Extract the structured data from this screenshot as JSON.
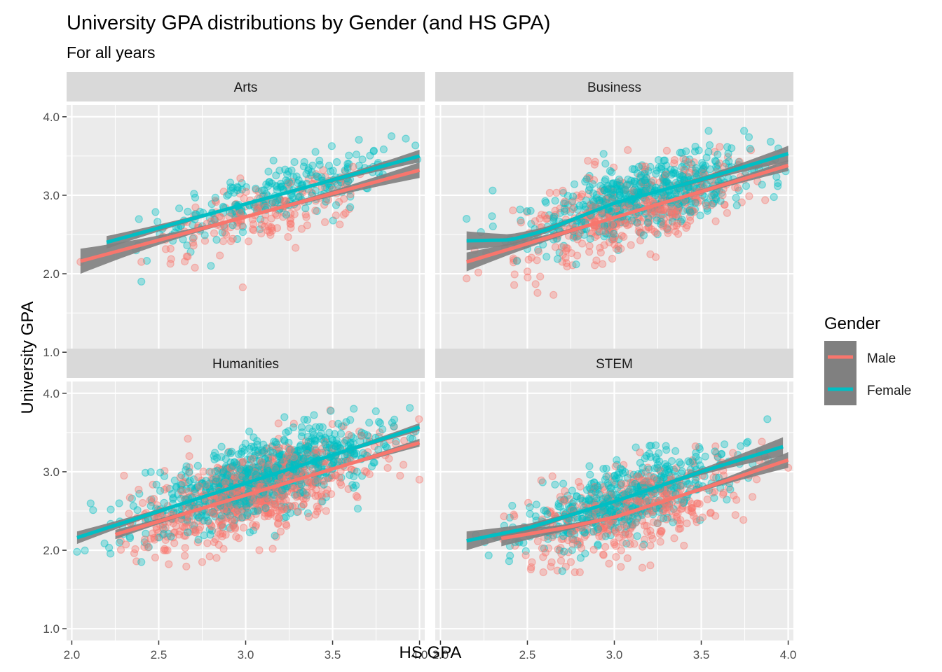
{
  "chart_data": {
    "type": "scatter",
    "title": "University GPA distributions by Gender (and HS GPA)",
    "subtitle": "For all years",
    "xlabel": "HS GPA",
    "ylabel": "University GPA",
    "xlim": [
      1.97,
      4.03
    ],
    "ylim": [
      0.85,
      4.15
    ],
    "x_ticks": [
      2.0,
      2.5,
      3.0,
      3.5,
      4.0
    ],
    "x_tick_labels": [
      "2.0",
      "2.5",
      "3.0",
      "3.5",
      "4.0"
    ],
    "y_ticks": [
      1.0,
      2.0,
      3.0,
      4.0
    ],
    "y_tick_labels": [
      "1.0",
      "2.0",
      "3.0",
      "4.0"
    ],
    "grid": true,
    "legend": {
      "title": "Gender",
      "placement": "right",
      "entries": [
        {
          "name": "Male",
          "color": "#F8766D"
        },
        {
          "name": "Female",
          "color": "#00BFC4"
        }
      ]
    },
    "colors": {
      "male": "#F8766D",
      "female": "#00BFC4",
      "panel_bg": "#EBEBEB",
      "strip_bg": "#D9D9D9",
      "ribbon": "#808080"
    },
    "facets": [
      {
        "name": "Arts",
        "series": [
          {
            "name": "Male",
            "fit": {
              "x": [
                2.05,
                4.0
              ],
              "y": [
                2.16,
                3.32
              ]
            },
            "band_halfwidth": [
              0.16,
              0.02,
              0.1
            ],
            "cloud": {
              "x_range": [
                2.05,
                4.0
              ],
              "x_center": 3.1,
              "x_sd": 0.33,
              "resid_sd": 0.22,
              "count": 180,
              "x_min_extra": [
                [
                  2.05,
                  2.15
                ],
                [
                  2.4,
                  2.15
                ]
              ]
            }
          },
          {
            "name": "Female",
            "fit": {
              "x": [
                2.2,
                4.0
              ],
              "y": [
                2.4,
                3.5
              ]
            },
            "band_halfwidth": [
              0.08,
              0.015,
              0.08
            ],
            "cloud": {
              "x_range": [
                2.3,
                4.0
              ],
              "x_center": 3.2,
              "x_sd": 0.33,
              "resid_sd": 0.18,
              "count": 260,
              "x_min_extra": [
                [
                  2.4,
                  1.9
                ],
                [
                  2.8,
                  2.1
                ]
              ]
            }
          }
        ]
      },
      {
        "name": "Business",
        "series": [
          {
            "name": "Male",
            "fit": {
              "x": [
                2.15,
                4.0
              ],
              "y": [
                2.15,
                3.38
              ]
            },
            "band_halfwidth": [
              0.12,
              0.015,
              0.07
            ],
            "cloud": {
              "x_range": [
                2.15,
                4.0
              ],
              "x_center": 3.1,
              "x_sd": 0.33,
              "resid_sd": 0.26,
              "count": 420,
              "x_min_extra": [
                [
                  2.65,
                  1.73
                ],
                [
                  2.15,
                  1.94
                ]
              ]
            }
          },
          {
            "name": "Female",
            "fit": {
              "x": [
                2.15,
                2.4,
                2.6,
                3.0,
                3.5,
                4.0
              ],
              "y": [
                2.42,
                2.43,
                2.55,
                2.9,
                3.2,
                3.53
              ]
            },
            "band_halfwidth": [
              0.12,
              0.015,
              0.1
            ],
            "cloud": {
              "x_range": [
                2.15,
                4.0
              ],
              "x_center": 3.15,
              "x_sd": 0.33,
              "resid_sd": 0.22,
              "count": 560,
              "x_min_extra": [
                [
                  2.15,
                  2.7
                ],
                [
                  2.3,
                  3.06
                ]
              ]
            }
          }
        ]
      },
      {
        "name": "Humanities",
        "series": [
          {
            "name": "Male",
            "fit": {
              "x": [
                2.25,
                4.0
              ],
              "y": [
                2.2,
                3.37
              ]
            },
            "band_halfwidth": [
              0.06,
              0.01,
              0.05
            ],
            "cloud": {
              "x_range": [
                2.25,
                4.0
              ],
              "x_center": 3.05,
              "x_sd": 0.33,
              "resid_sd": 0.26,
              "count": 700,
              "x_min_extra": [
                [
                  2.75,
                  1.85
                ],
                [
                  2.3,
                  2.95
                ]
              ]
            }
          },
          {
            "name": "Female",
            "fit": {
              "x": [
                2.03,
                4.0
              ],
              "y": [
                2.16,
                3.57
              ]
            },
            "band_halfwidth": [
              0.08,
              0.01,
              0.05
            ],
            "cloud": {
              "x_range": [
                2.03,
                4.0
              ],
              "x_center": 3.1,
              "x_sd": 0.33,
              "resid_sd": 0.23,
              "count": 820,
              "x_min_extra": [
                [
                  2.03,
                  1.98
                ],
                [
                  2.4,
                  1.85
                ]
              ]
            }
          }
        ]
      },
      {
        "name": "STEM",
        "series": [
          {
            "name": "Male",
            "fit": {
              "x": [
                2.35,
                2.7,
                3.0,
                3.5,
                4.0
              ],
              "y": [
                2.15,
                2.28,
                2.42,
                2.78,
                3.15
              ]
            },
            "band_halfwidth": [
              0.1,
              0.015,
              0.1
            ],
            "cloud": {
              "x_range": [
                2.35,
                4.0
              ],
              "x_center": 3.1,
              "x_sd": 0.3,
              "resid_sd": 0.26,
              "count": 420,
              "x_min_extra": [
                [
                  2.75,
                  1.85
                ],
                [
                  4.0,
                  3.05
                ]
              ]
            }
          },
          {
            "name": "Female",
            "fit": {
              "x": [
                2.15,
                2.5,
                3.0,
                3.5,
                3.97
              ],
              "y": [
                2.12,
                2.28,
                2.62,
                3.0,
                3.32
              ]
            },
            "band_halfwidth": [
              0.12,
              0.015,
              0.12
            ],
            "cloud": {
              "x_range": [
                2.15,
                3.97
              ],
              "x_center": 3.05,
              "x_sd": 0.3,
              "resid_sd": 0.22,
              "count": 520,
              "x_min_extra": [
                [
                  2.4,
                  1.93
                ],
                [
                  3.88,
                  3.67
                ]
              ]
            }
          }
        ]
      }
    ]
  }
}
